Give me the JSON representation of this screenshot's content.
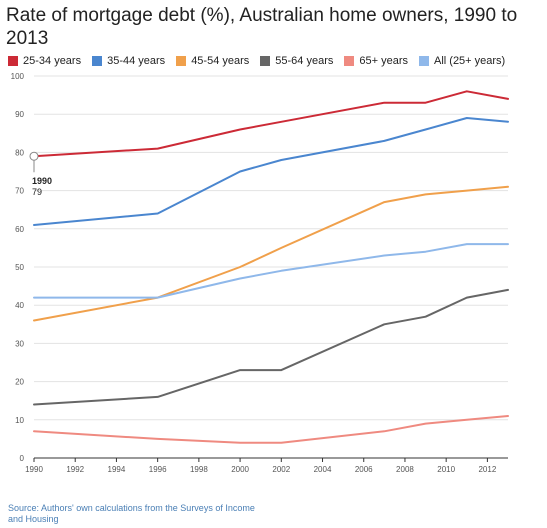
{
  "title": "Rate of mortgage debt (%), Australian home owners, 1990 to 2013",
  "source": "Source: Authors' own calculations from the Surveys of Income and Housing",
  "tooltip": {
    "year": "1990",
    "value": "79"
  },
  "colors": {
    "25-34 years": "#cc2a36",
    "35-44 years": "#4a86cf",
    "45-54 years": "#f0a04b",
    "55-64 years": "#666666",
    "65+ years": "#ef8a80",
    "All (25+ years)": "#8fb8ea",
    "grid": "#e3e3e3",
    "axis": "#333333"
  },
  "chart_data": {
    "type": "line",
    "title": "Rate of mortgage debt (%), Australian home owners, 1990 to 2013",
    "xlabel": "",
    "ylabel": "",
    "xlim": [
      1990,
      2013
    ],
    "ylim": [
      0,
      100
    ],
    "x_ticks": [
      1990,
      1992,
      1994,
      1996,
      1998,
      2000,
      2002,
      2004,
      2006,
      2008,
      2010,
      2012
    ],
    "y_ticks": [
      0,
      10,
      20,
      30,
      40,
      50,
      60,
      70,
      80,
      90,
      100
    ],
    "grid": true,
    "legend_position": "top",
    "x": [
      1990,
      1996,
      2000,
      2002,
      2007,
      2009,
      2011,
      2013
    ],
    "series": [
      {
        "name": "25-34 years",
        "values": [
          79,
          81,
          86,
          88,
          93,
          93,
          96,
          94
        ]
      },
      {
        "name": "35-44 years",
        "values": [
          61,
          64,
          75,
          78,
          83,
          86,
          89,
          88
        ]
      },
      {
        "name": "45-54 years",
        "values": [
          36,
          42,
          50,
          55,
          67,
          69,
          70,
          71
        ]
      },
      {
        "name": "55-64 years",
        "values": [
          14,
          16,
          23,
          23,
          35,
          37,
          42,
          44
        ]
      },
      {
        "name": "65+ years",
        "values": [
          7,
          5,
          4,
          4,
          7,
          9,
          10,
          11
        ]
      },
      {
        "name": "All (25+ years)",
        "values": [
          42,
          42,
          47,
          49,
          53,
          54,
          56,
          56
        ]
      }
    ]
  }
}
